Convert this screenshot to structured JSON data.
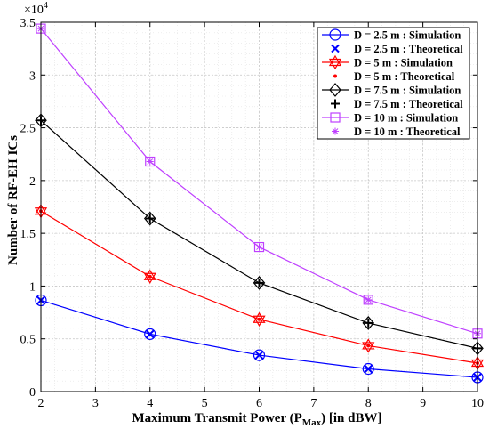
{
  "chart_data": {
    "type": "line",
    "xlabel_prefix": "Maximum Transmit Power (P",
    "xlabel_sub": "Max",
    "xlabel_suffix": ") [in dBW]",
    "ylabel": "Number of RF-EH ICs",
    "y_exponent_label": "×10",
    "y_exponent_power": "4",
    "xlim": [
      2,
      10
    ],
    "ylim": [
      0,
      3.5
    ],
    "y_scale_factor": 10000,
    "grid": true,
    "legend_position": "top-right",
    "x_ticks": [
      "2",
      "3",
      "4",
      "5",
      "6",
      "7",
      "8",
      "9",
      "10"
    ],
    "y_ticks": [
      "0",
      "0.5",
      "1",
      "1.5",
      "2",
      "2.5",
      "3",
      "3.5"
    ],
    "x": [
      2,
      4,
      6,
      8,
      10
    ],
    "series": [
      {
        "name": "D = 2.5 m : Simulation",
        "color": "#0000ff",
        "marker": "circle",
        "line": true,
        "values": [
          0.865,
          0.545,
          0.345,
          0.215,
          0.135
        ]
      },
      {
        "name": "D = 2.5 m : Theoretical",
        "color": "#0000ff",
        "marker": "x",
        "line": false,
        "values": [
          0.865,
          0.545,
          0.345,
          0.215,
          0.135
        ]
      },
      {
        "name": "D = 5 m : Simulation",
        "color": "#ff0000",
        "marker": "hexagram",
        "line": true,
        "values": [
          1.71,
          1.09,
          0.685,
          0.435,
          0.27
        ]
      },
      {
        "name": "D = 5 m : Theoretical",
        "color": "#ff0000",
        "marker": "dot",
        "line": false,
        "values": [
          1.71,
          1.09,
          0.685,
          0.435,
          0.27
        ]
      },
      {
        "name": "D = 7.5 m : Simulation",
        "color": "#000000",
        "marker": "diamond",
        "line": true,
        "values": [
          2.57,
          1.64,
          1.03,
          0.65,
          0.41
        ]
      },
      {
        "name": "D = 7.5 m : Theoretical",
        "color": "#000000",
        "marker": "plus",
        "line": false,
        "values": [
          2.57,
          1.64,
          1.03,
          0.65,
          0.41
        ]
      },
      {
        "name": "D = 10 m : Simulation",
        "color": "#bf40ff",
        "marker": "square",
        "line": true,
        "values": [
          3.44,
          2.18,
          1.37,
          0.87,
          0.55
        ]
      },
      {
        "name": "D = 10 m : Theoretical",
        "color": "#bf40ff",
        "marker": "asterisk",
        "line": false,
        "values": [
          3.44,
          2.18,
          1.37,
          0.87,
          0.55
        ]
      }
    ]
  }
}
